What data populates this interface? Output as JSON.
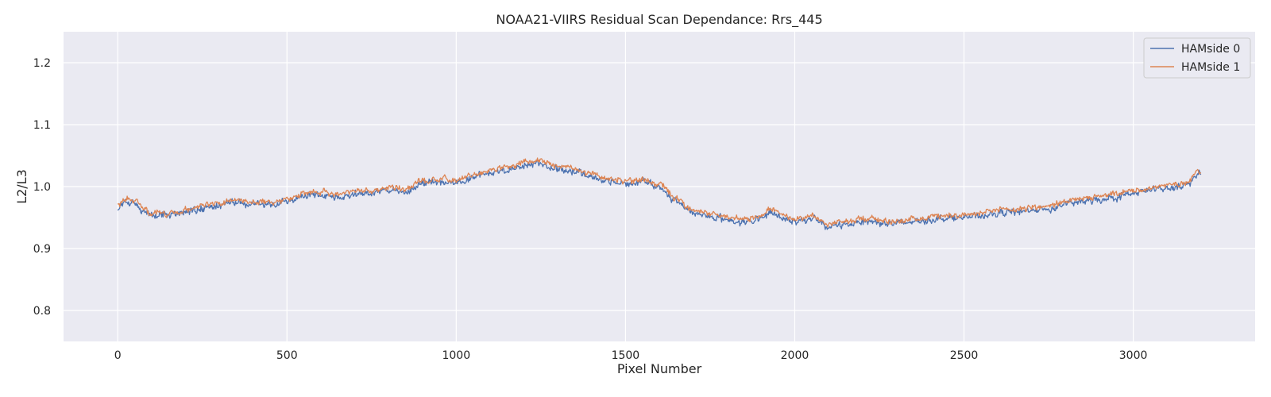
{
  "chart_data": {
    "type": "line",
    "title": "NOAA21-VIIRS Residual Scan Dependance: Rrs_445",
    "xlabel": "Pixel Number",
    "ylabel": "L2/L3",
    "xlim": [
      -160,
      3360
    ],
    "ylim": [
      0.75,
      1.25
    ],
    "xticks": [
      0,
      500,
      1000,
      1500,
      2000,
      2500,
      3000
    ],
    "yticks": [
      0.8,
      0.9,
      1.0,
      1.1,
      1.2
    ],
    "xtick_labels": [
      "0",
      "500",
      "1000",
      "1500",
      "2000",
      "2500",
      "3000"
    ],
    "ytick_labels": [
      "0.8",
      "0.9",
      "1.0",
      "1.1",
      "1.2"
    ],
    "grid": true,
    "legend_position": "top-right",
    "x_range": [
      0,
      3200
    ],
    "anchors": {
      "x": [
        0,
        20,
        50,
        80,
        100,
        130,
        150,
        200,
        250,
        300,
        350,
        400,
        450,
        500,
        550,
        600,
        650,
        700,
        750,
        800,
        850,
        900,
        950,
        1000,
        1050,
        1100,
        1150,
        1200,
        1250,
        1300,
        1350,
        1400,
        1450,
        1500,
        1550,
        1600,
        1650,
        1700,
        1750,
        1800,
        1850,
        1900,
        1930,
        1950,
        2000,
        2050,
        2100,
        2150,
        2200,
        2250,
        2300,
        2350,
        2400,
        2450,
        2500,
        2550,
        2600,
        2650,
        2700,
        2750,
        2800,
        2850,
        2900,
        2950,
        3000,
        3050,
        3100,
        3150,
        3200
      ],
      "y": [
        0.968,
        0.978,
        0.975,
        0.962,
        0.955,
        0.958,
        0.955,
        0.962,
        0.967,
        0.972,
        0.977,
        0.975,
        0.972,
        0.98,
        0.988,
        0.99,
        0.987,
        0.992,
        0.992,
        0.997,
        0.995,
        1.008,
        1.01,
        1.01,
        1.018,
        1.025,
        1.03,
        1.038,
        1.04,
        1.033,
        1.027,
        1.018,
        1.012,
        1.008,
        1.01,
        1.002,
        0.978,
        0.962,
        0.955,
        0.95,
        0.945,
        0.95,
        0.962,
        0.955,
        0.948,
        0.95,
        0.938,
        0.942,
        0.948,
        0.945,
        0.943,
        0.946,
        0.95,
        0.953,
        0.953,
        0.955,
        0.96,
        0.962,
        0.965,
        0.966,
        0.975,
        0.978,
        0.982,
        0.986,
        0.992,
        0.997,
        1.0,
        1.005,
        1.025
      ]
    },
    "series": [
      {
        "name": "HAMside 0",
        "color": "#4c72b0",
        "offset": -0.003,
        "noise": 0.0065
      },
      {
        "name": "HAMside 1",
        "color": "#dd8452",
        "offset": 0.0015,
        "noise": 0.0055
      }
    ]
  }
}
